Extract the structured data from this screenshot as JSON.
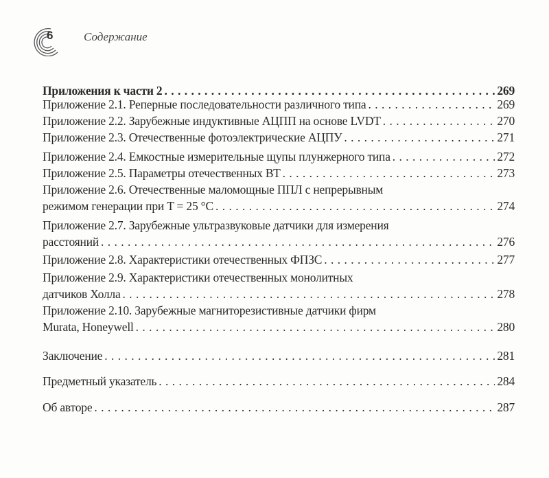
{
  "header": {
    "page_number": "6",
    "running_title": "Содержание"
  },
  "entries": [
    {
      "lines": [
        "Приложения к части 2"
      ],
      "page": "269",
      "bold": true
    },
    {
      "lines": [
        "Приложение 2.1. Реперные последовательности различного типа"
      ],
      "page": "269"
    },
    {
      "lines": [
        "Приложение 2.2. Зарубежные индуктивные АЦПП на основе LVDT"
      ],
      "page": "270"
    },
    {
      "lines": [
        "Приложение 2.3. Отечественные фотоэлектрические АЦПУ"
      ],
      "page": "271"
    },
    {
      "lines": [
        "Приложение 2.4. Емкостные измерительные щупы плунжерного типа"
      ],
      "page": "272"
    },
    {
      "lines": [
        "Приложение 2.5. Параметры отечественных ВТ"
      ],
      "page": "273"
    },
    {
      "lines": [
        "Приложение 2.6. Отечественные маломощные ППЛ с непрерывным",
        "режимом генерации при T = 25 °C"
      ],
      "page": "274"
    },
    {
      "lines": [
        "Приложение 2.7. Зарубежные ультразвуковые датчики для измерения",
        "расстояний"
      ],
      "page": "276"
    },
    {
      "lines": [
        "Приложение 2.8. Характеристики отечественных ФПЗС"
      ],
      "page": "277"
    },
    {
      "lines": [
        "Приложение 2.9. Характеристики отечественных монолитных",
        "датчиков Холла"
      ],
      "page": "278"
    },
    {
      "lines": [
        "Приложение 2.10. Зарубежные магниторезистивные датчики фирм",
        "Murata, Honeywell"
      ],
      "page": "280"
    },
    {
      "lines": [
        "Заключение"
      ],
      "page": "281"
    },
    {
      "lines": [
        "Предметный указатель"
      ],
      "page": "284"
    },
    {
      "lines": [
        "Об авторе"
      ],
      "page": "287"
    }
  ]
}
